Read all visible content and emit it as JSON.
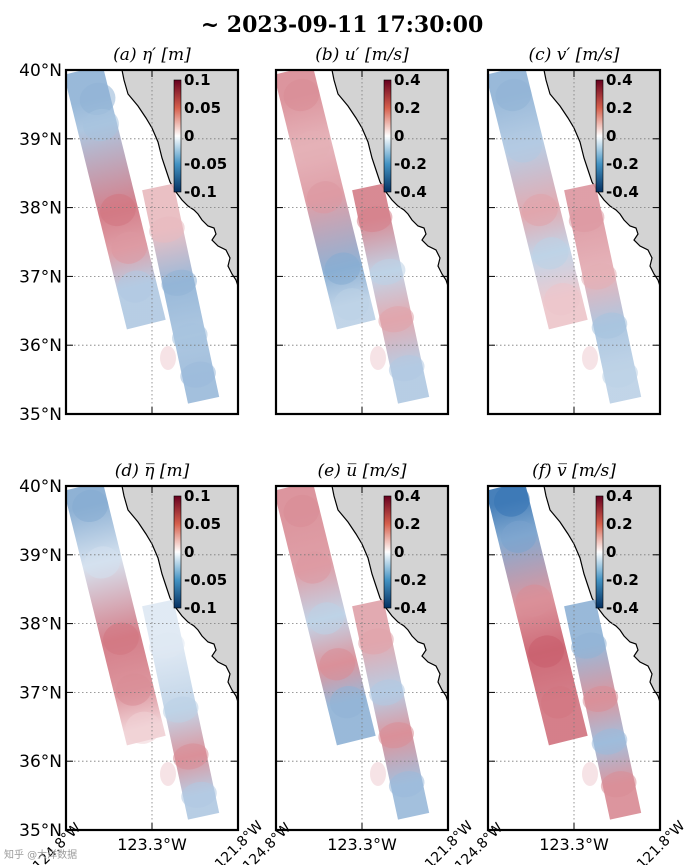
{
  "title": "~ 2023-09-11 17:30:00",
  "watermark": "知乎 @大洋数据",
  "colors": {
    "positive": "#b2182b",
    "negative": "#2166ac",
    "land": "#d3d3d3",
    "frame": "#000000",
    "grid": "#7a7a7a"
  },
  "chart_data": [
    {
      "id": "a",
      "type": "heatmap",
      "title": "(a) η′ [m]",
      "lat_ticks": [
        "40°N",
        "39°N",
        "38°N",
        "37°N",
        "36°N",
        "35°N"
      ],
      "lon_ticks": [],
      "lon_range": [
        -124.8,
        -121.8
      ],
      "lat_range": [
        35,
        40
      ],
      "colorbar": {
        "ticks": [
          "0.1",
          "0.05",
          "0",
          "-0.05",
          "-0.1"
        ],
        "range": [
          -0.1,
          0.1
        ]
      },
      "swaths": [
        {
          "name": "western",
          "centerline": [
            [
              -124.5,
              40.0
            ],
            [
              -123.4,
              36.3
            ]
          ],
          "blobs": [
            [
              0.12,
              0.15,
              -0.5
            ],
            [
              0.22,
              0.3,
              -0.4
            ],
            [
              0.55,
              0.5,
              0.6
            ],
            [
              0.7,
              0.4,
              0.45
            ],
            [
              0.85,
              0.55,
              -0.35
            ]
          ]
        },
        {
          "name": "eastern",
          "centerline": [
            [
              -123.2,
              38.3
            ],
            [
              -122.4,
              35.2
            ]
          ],
          "blobs": [
            [
              0.2,
              0.5,
              0.3
            ],
            [
              0.45,
              0.45,
              -0.5
            ],
            [
              0.7,
              0.5,
              -0.4
            ],
            [
              0.88,
              0.5,
              -0.45
            ]
          ]
        }
      ]
    },
    {
      "id": "b",
      "type": "heatmap",
      "title": "(b) u′ [m/s]",
      "lat_ticks": [],
      "lon_ticks": [],
      "lon_range": [
        -124.8,
        -121.8
      ],
      "lat_range": [
        35,
        40
      ],
      "colorbar": {
        "ticks": [
          "0.4",
          "0.2",
          "0",
          "-0.2",
          "-0.4"
        ],
        "range": [
          -0.4,
          0.4
        ]
      },
      "swaths": [
        {
          "name": "western",
          "centerline": [
            [
              -124.5,
              40.0
            ],
            [
              -123.4,
              36.3
            ]
          ],
          "blobs": [
            [
              0.1,
              0.4,
              0.5
            ],
            [
              0.3,
              0.5,
              0.35
            ],
            [
              0.5,
              0.5,
              0.45
            ],
            [
              0.78,
              0.5,
              -0.55
            ],
            [
              0.92,
              0.5,
              -0.3
            ]
          ]
        },
        {
          "name": "eastern",
          "centerline": [
            [
              -123.2,
              38.3
            ],
            [
              -122.4,
              35.2
            ]
          ],
          "blobs": [
            [
              0.15,
              0.5,
              0.55
            ],
            [
              0.4,
              0.4,
              -0.3
            ],
            [
              0.62,
              0.5,
              0.4
            ],
            [
              0.85,
              0.5,
              -0.35
            ]
          ]
        }
      ]
    },
    {
      "id": "c",
      "type": "heatmap",
      "title": "(c) v′ [m/s]",
      "lat_ticks": [],
      "lon_ticks": [],
      "lon_range": [
        -124.8,
        -121.8
      ],
      "lat_range": [
        35,
        40
      ],
      "colorbar": {
        "ticks": [
          "0.4",
          "0.2",
          "0",
          "-0.2",
          "-0.4"
        ],
        "range": [
          -0.4,
          0.4
        ]
      },
      "swaths": [
        {
          "name": "western",
          "centerline": [
            [
              -124.5,
              40.0
            ],
            [
              -123.4,
              36.3
            ]
          ],
          "blobs": [
            [
              0.1,
              0.4,
              -0.5
            ],
            [
              0.3,
              0.5,
              -0.35
            ],
            [
              0.55,
              0.5,
              0.4
            ],
            [
              0.72,
              0.5,
              -0.3
            ],
            [
              0.9,
              0.5,
              0.25
            ]
          ]
        },
        {
          "name": "eastern",
          "centerline": [
            [
              -123.2,
              38.3
            ],
            [
              -122.4,
              35.2
            ]
          ],
          "blobs": [
            [
              0.15,
              0.5,
              0.45
            ],
            [
              0.42,
              0.5,
              0.35
            ],
            [
              0.65,
              0.5,
              -0.4
            ],
            [
              0.88,
              0.5,
              -0.3
            ]
          ]
        }
      ]
    },
    {
      "id": "d",
      "type": "heatmap",
      "title": "(d) η̅ [m]",
      "lat_ticks": [
        "40°N",
        "39°N",
        "38°N",
        "37°N",
        "36°N",
        "35°N"
      ],
      "lon_ticks": [
        "124.8°W",
        "123.3°W",
        "121.8°W"
      ],
      "lon_range": [
        -124.8,
        -121.8
      ],
      "lat_range": [
        35,
        40
      ],
      "colorbar": {
        "ticks": [
          "0.1",
          "0.05",
          "0",
          "-0.05",
          "-0.1"
        ],
        "range": [
          -0.1,
          0.1
        ]
      },
      "swaths": [
        {
          "name": "western",
          "centerline": [
            [
              -124.5,
              40.0
            ],
            [
              -123.4,
              36.3
            ]
          ],
          "blobs": [
            [
              0.08,
              0.4,
              -0.55
            ],
            [
              0.3,
              0.5,
              -0.2
            ],
            [
              0.6,
              0.5,
              0.6
            ],
            [
              0.8,
              0.5,
              0.5
            ],
            [
              0.95,
              0.5,
              0.2
            ]
          ]
        },
        {
          "name": "eastern",
          "centerline": [
            [
              -123.2,
              38.3
            ],
            [
              -122.4,
              35.2
            ]
          ],
          "blobs": [
            [
              0.2,
              0.5,
              -0.15
            ],
            [
              0.5,
              0.5,
              -0.3
            ],
            [
              0.72,
              0.5,
              0.5
            ],
            [
              0.9,
              0.5,
              -0.35
            ]
          ]
        }
      ]
    },
    {
      "id": "e",
      "type": "heatmap",
      "title": "(e) u̅ [m/s]",
      "lat_ticks": [],
      "lon_ticks": [
        "124.8°W",
        "123.3°W",
        "121.8°W"
      ],
      "lon_range": [
        -124.8,
        -121.8
      ],
      "lat_range": [
        35,
        40
      ],
      "colorbar": {
        "ticks": [
          "0.4",
          "0.2",
          "0",
          "-0.2",
          "-0.4"
        ],
        "range": [
          -0.4,
          0.4
        ]
      },
      "swaths": [
        {
          "name": "western",
          "centerline": [
            [
              -124.5,
              40.0
            ],
            [
              -123.4,
              36.3
            ]
          ],
          "blobs": [
            [
              0.1,
              0.4,
              0.5
            ],
            [
              0.32,
              0.5,
              0.45
            ],
            [
              0.52,
              0.5,
              -0.3
            ],
            [
              0.7,
              0.5,
              0.5
            ],
            [
              0.85,
              0.45,
              -0.5
            ]
          ]
        },
        {
          "name": "eastern",
          "centerline": [
            [
              -123.2,
              38.3
            ],
            [
              -122.4,
              35.2
            ]
          ],
          "blobs": [
            [
              0.18,
              0.5,
              0.4
            ],
            [
              0.42,
              0.5,
              -0.35
            ],
            [
              0.62,
              0.5,
              0.5
            ],
            [
              0.85,
              0.5,
              -0.45
            ]
          ]
        }
      ]
    },
    {
      "id": "f",
      "type": "heatmap",
      "title": "(f) v̅ [m/s]",
      "lat_ticks": [],
      "lon_ticks": [
        "124.8°W",
        "123.3°W",
        "121.8°W"
      ],
      "lon_range": [
        -124.8,
        -121.8
      ],
      "lat_range": [
        35,
        40
      ],
      "colorbar": {
        "ticks": [
          "0.4",
          "0.2",
          "0",
          "-0.2",
          "-0.4"
        ],
        "range": [
          -0.4,
          0.4
        ]
      },
      "swaths": [
        {
          "name": "western",
          "centerline": [
            [
              -124.5,
              40.0
            ],
            [
              -123.4,
              36.3
            ]
          ],
          "blobs": [
            [
              0.06,
              0.35,
              -0.9
            ],
            [
              0.2,
              0.45,
              -0.6
            ],
            [
              0.45,
              0.5,
              0.5
            ],
            [
              0.65,
              0.5,
              0.7
            ],
            [
              0.85,
              0.5,
              0.6
            ]
          ]
        },
        {
          "name": "eastern",
          "centerline": [
            [
              -123.2,
              38.3
            ],
            [
              -122.4,
              35.2
            ]
          ],
          "blobs": [
            [
              0.2,
              0.5,
              -0.5
            ],
            [
              0.45,
              0.5,
              0.5
            ],
            [
              0.65,
              0.5,
              -0.45
            ],
            [
              0.85,
              0.5,
              0.5
            ]
          ]
        }
      ]
    }
  ]
}
